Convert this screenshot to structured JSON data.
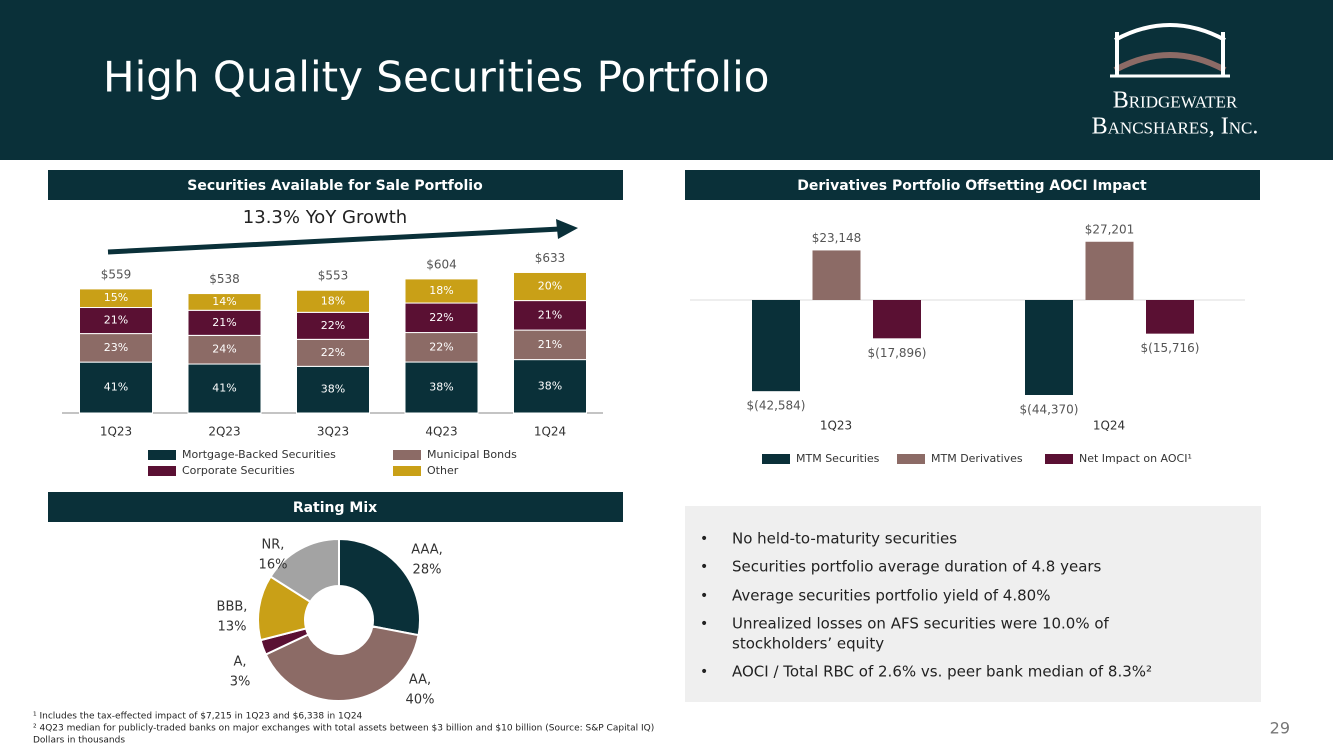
{
  "header": {
    "title": "High Quality Securities Portfolio",
    "logo_line1": "Bridgewater",
    "logo_line2": "Bancshares, Inc."
  },
  "chart_data": [
    {
      "type": "stacked_bar",
      "title": "Securities Available for Sale Portfolio",
      "annotation": "13.3% YoY Growth",
      "categories": [
        "1Q23",
        "2Q23",
        "3Q23",
        "4Q23",
        "1Q24"
      ],
      "series": [
        {
          "name": "Mortgage-Backed Securities",
          "color": "#0a3039",
          "values": [
            41,
            41,
            38,
            38,
            38
          ],
          "value_labels": [
            "41%",
            "41%",
            "38%",
            "38%",
            "38%"
          ]
        },
        {
          "name": "Municipal Bonds",
          "color": "#8c6b66",
          "values": [
            23,
            24,
            22,
            22,
            21
          ],
          "value_labels": [
            "23%",
            "24%",
            "22%",
            "22%",
            "21%"
          ]
        },
        {
          "name": "Corporate Securities",
          "color": "#5a1033",
          "values": [
            21,
            21,
            22,
            22,
            21
          ],
          "value_labels": [
            "21%",
            "21%",
            "22%",
            "22%",
            "21%"
          ]
        },
        {
          "name": "Other",
          "color": "#c9a017",
          "values": [
            15,
            14,
            18,
            18,
            20
          ],
          "value_labels": [
            "15%",
            "14%",
            "18%",
            "18%",
            "20%"
          ]
        }
      ],
      "totals": {
        "values": [
          559,
          538,
          553,
          604,
          633
        ],
        "value_labels": [
          "$559",
          "$538",
          "$553",
          "$604",
          "$633"
        ]
      }
    },
    {
      "type": "bar",
      "title": "Derivatives Portfolio Offsetting AOCI Impact",
      "categories": [
        "1Q23",
        "1Q24"
      ],
      "series": [
        {
          "name": "MTM Securities",
          "color": "#0a3039",
          "values": [
            -42584,
            -44370
          ],
          "value_labels": [
            "$(42,584)",
            "$(44,370)"
          ]
        },
        {
          "name": "MTM Derivatives",
          "color": "#8c6b66",
          "values": [
            23148,
            27201
          ],
          "value_labels": [
            "$23,148",
            "$27,201"
          ]
        },
        {
          "name": "Net Impact on AOCI¹",
          "color": "#5a1033",
          "values": [
            -17896,
            -15716
          ],
          "value_labels": [
            "$(17,896)",
            "$(15,716)"
          ]
        }
      ]
    },
    {
      "type": "donut",
      "title": "Rating Mix",
      "categories": [
        "AAA,",
        "AA,",
        "A,",
        "BBB,",
        "NR,"
      ],
      "values": [
        28,
        40,
        3,
        13,
        16
      ],
      "value_labels": [
        "28%",
        "40%",
        "3%",
        "13%",
        "16%"
      ],
      "colors": [
        "#0a3039",
        "#8c6b66",
        "#5a1033",
        "#c9a017",
        "#a3a3a3"
      ]
    }
  ],
  "bullets": [
    "No held-to-maturity securities",
    "Securities portfolio average duration of 4.8 years",
    "Average securities portfolio yield of 4.80%",
    "Unrealized losses on AFS securities were 10.0% of",
    "stockholders’ equity",
    "AOCI / Total RBC of 2.6% vs. peer bank median of 8.3%²"
  ],
  "footnotes": [
    "¹ Includes the tax-effected impact of $7,215 in 1Q23 and $6,338 in 1Q24",
    "² 4Q23 median for publicly-traded banks on major exchanges with total assets between $3 billion and $10 billion (Source: S&P Capital IQ)",
    "Dollars in thousands"
  ],
  "page_number": "29"
}
